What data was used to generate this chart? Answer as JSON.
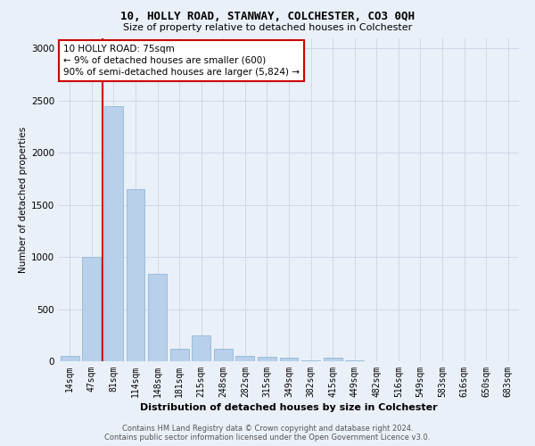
{
  "title": "10, HOLLY ROAD, STANWAY, COLCHESTER, CO3 0QH",
  "subtitle": "Size of property relative to detached houses in Colchester",
  "xlabel": "Distribution of detached houses by size in Colchester",
  "ylabel": "Number of detached properties",
  "categories": [
    "14sqm",
    "47sqm",
    "81sqm",
    "114sqm",
    "148sqm",
    "181sqm",
    "215sqm",
    "248sqm",
    "282sqm",
    "315sqm",
    "349sqm",
    "382sqm",
    "415sqm",
    "449sqm",
    "482sqm",
    "516sqm",
    "549sqm",
    "583sqm",
    "616sqm",
    "650sqm",
    "683sqm"
  ],
  "values": [
    50,
    1000,
    2450,
    1650,
    840,
    120,
    250,
    120,
    55,
    40,
    30,
    10,
    30,
    5,
    0,
    0,
    0,
    0,
    0,
    0,
    0
  ],
  "bar_color": "#b8d0ea",
  "bar_edge_color": "#90b8d8",
  "property_line_color": "#cc0000",
  "property_line_x": 1.5,
  "annotation_text": "10 HOLLY ROAD: 75sqm\n← 9% of detached houses are smaller (600)\n90% of semi-detached houses are larger (5,824) →",
  "annotation_box_facecolor": "#ffffff",
  "annotation_box_edgecolor": "#cc0000",
  "ylim": [
    0,
    3100
  ],
  "yticks": [
    0,
    500,
    1000,
    1500,
    2000,
    2500,
    3000
  ],
  "grid_color": "#d0d8e8",
  "background_color": "#eaf0f8",
  "footer_line1": "Contains HM Land Registry data © Crown copyright and database right 2024.",
  "footer_line2": "Contains public sector information licensed under the Open Government Licence v3.0.",
  "title_fontsize": 9,
  "subtitle_fontsize": 8,
  "xlabel_fontsize": 8,
  "ylabel_fontsize": 7.5,
  "tick_fontsize": 7,
  "footer_fontsize": 6,
  "ann_fontsize": 7.5
}
